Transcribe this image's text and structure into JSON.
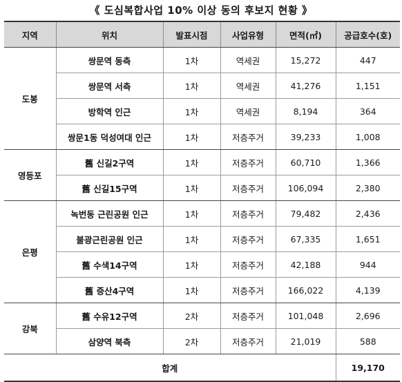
{
  "title": "《 도심복합사업 10% 이상 동의 후보지 현황 》",
  "headers": [
    "지역",
    "위치",
    "발표시점",
    "사업유형",
    "면적(㎡)",
    "공급호수(호)"
  ],
  "groups": [
    {
      "region": "도봉",
      "rows": [
        {
          "location": "쌍문역 동측",
          "announce": "1차",
          "type": "역세권",
          "area": "15,272",
          "supply": "447"
        },
        {
          "location": "쌍문역 서측",
          "announce": "1차",
          "type": "역세권",
          "area": "41,276",
          "supply": "1,151"
        },
        {
          "location": "방학역 인근",
          "announce": "1차",
          "type": "역세권",
          "area": "8,194",
          "supply": "364"
        },
        {
          "location": "쌍문1동 덕성여대 인근",
          "announce": "1차",
          "type": "저층주거",
          "area": "39,233",
          "supply": "1,008"
        }
      ]
    },
    {
      "region": "영등포",
      "rows": [
        {
          "location": "舊 신길2구역",
          "announce": "1차",
          "type": "저층주거",
          "area": "60,710",
          "supply": "1,366"
        },
        {
          "location": "舊 신길15구역",
          "announce": "1차",
          "type": "저층주거",
          "area": "106,094",
          "supply": "2,380"
        }
      ]
    },
    {
      "region": "은평",
      "rows": [
        {
          "location": "녹번동 근린공원 인근",
          "announce": "1차",
          "type": "저층주거",
          "area": "79,482",
          "supply": "2,436"
        },
        {
          "location": "불광근린공원 인근",
          "announce": "1차",
          "type": "저층주거",
          "area": "67,335",
          "supply": "1,651"
        },
        {
          "location": "舊 수색14구역",
          "announce": "1차",
          "type": "저층주거",
          "area": "42,188",
          "supply": "944"
        },
        {
          "location": "舊 증산4구역",
          "announce": "1차",
          "type": "저층주거",
          "area": "166,022",
          "supply": "4,139"
        }
      ]
    },
    {
      "region": "강북",
      "rows": [
        {
          "location": "舊 수유12구역",
          "announce": "2차",
          "type": "저층주거",
          "area": "101,048",
          "supply": "2,696"
        },
        {
          "location": "삼양역 북측",
          "announce": "2차",
          "type": "저층주거",
          "area": "21,019",
          "supply": "588"
        }
      ]
    }
  ],
  "total": {
    "label": "합계",
    "supply": "19,170"
  }
}
